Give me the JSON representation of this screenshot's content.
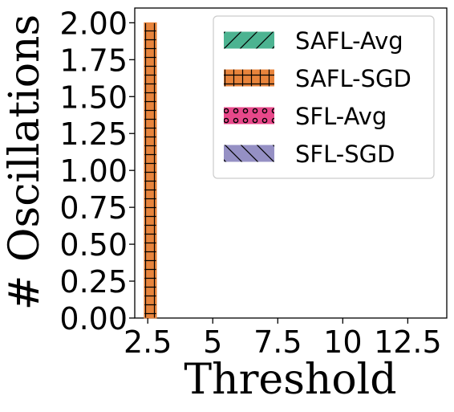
{
  "chart_data": {
    "type": "bar",
    "xlabel": "Threshold",
    "ylabel": "# Oscillations",
    "x_ticks": [
      "2.5",
      "5",
      "7.5",
      "10",
      "12.5"
    ],
    "y_ticks": [
      "0.00",
      "0.25",
      "0.50",
      "0.75",
      "1.00",
      "1.25",
      "1.50",
      "1.75",
      "2.00"
    ],
    "xlim": [
      2.0,
      14.0
    ],
    "ylim": [
      0,
      2.1
    ],
    "series": [
      {
        "name": "SAFL-Avg",
        "color": "#4cb391",
        "hatch": "diagonal",
        "x": [],
        "values": []
      },
      {
        "name": "SAFL-SGD",
        "color": "#e8843c",
        "hatch": "grid",
        "x": [
          2.6
        ],
        "values": [
          2.0
        ]
      },
      {
        "name": "SFL-Avg",
        "color": "#e8488a",
        "hatch": "circles",
        "x": [],
        "values": []
      },
      {
        "name": "SFL-SGD",
        "color": "#9590c4",
        "hatch": "backdiagonal",
        "x": [],
        "values": []
      }
    ],
    "legend_position": "top-right"
  }
}
